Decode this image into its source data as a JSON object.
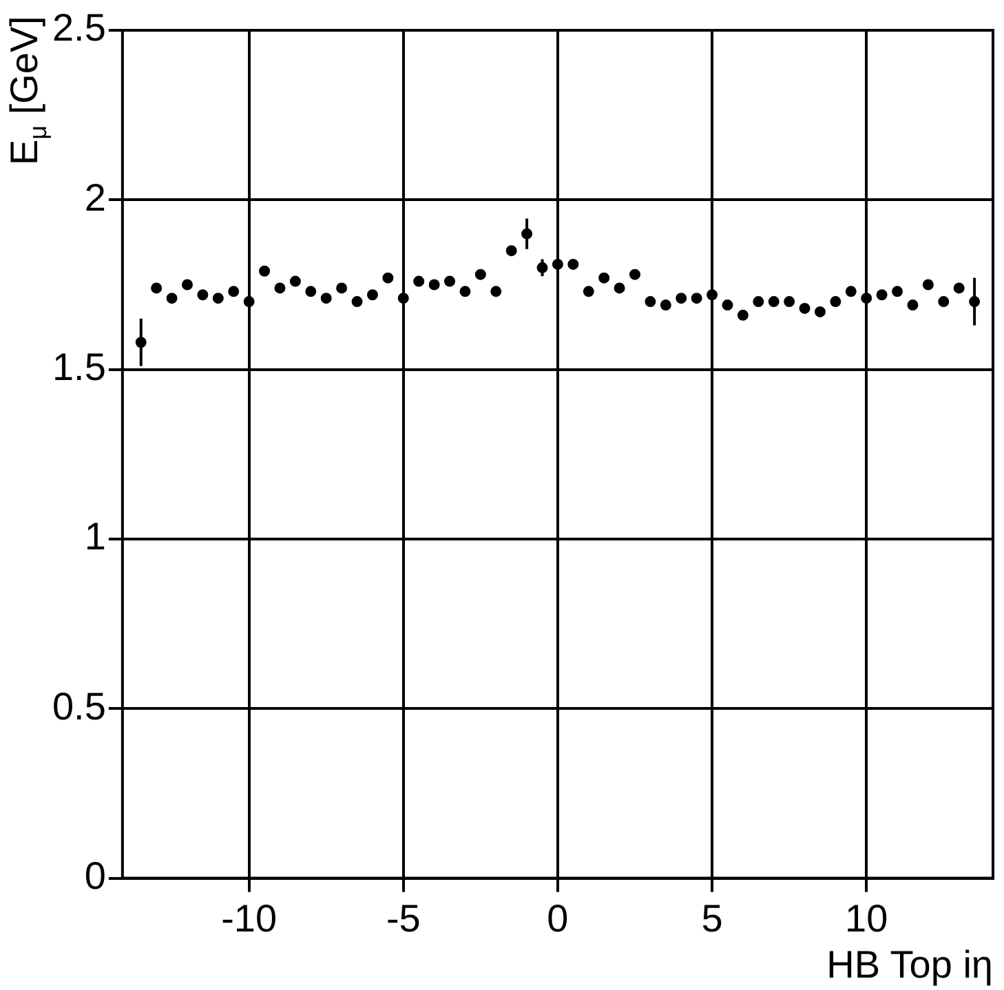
{
  "chart_data": {
    "type": "scatter",
    "xlabel": "HB Top iη",
    "ylabel": "E$_{μ}$ [GeV]",
    "x": [
      -13.5,
      -13,
      -12.5,
      -12,
      -11.5,
      -11,
      -10.5,
      -10,
      -9.5,
      -9,
      -8.5,
      -8,
      -7.5,
      -7,
      -6.5,
      -6,
      -5.5,
      -5,
      -4.5,
      -4,
      -3.5,
      -3,
      -2.5,
      -2,
      -1.5,
      -1,
      -0.5,
      0,
      0.5,
      1,
      1.5,
      2,
      2.5,
      3,
      3.5,
      4,
      4.5,
      5,
      5.5,
      6,
      6.5,
      7,
      7.5,
      8,
      8.5,
      9,
      9.5,
      10,
      10.5,
      11,
      11.5,
      12,
      12.5,
      13,
      13.5
    ],
    "series": [
      {
        "color": "#000000",
        "values": [
          1.58,
          1.74,
          1.71,
          1.75,
          1.72,
          1.71,
          1.73,
          1.7,
          1.79,
          1.74,
          1.76,
          1.73,
          1.71,
          1.74,
          1.7,
          1.72,
          1.77,
          1.71,
          1.76,
          1.75,
          1.76,
          1.73,
          1.78,
          1.73,
          1.85,
          1.9,
          1.8,
          1.81,
          1.81,
          1.73,
          1.77,
          1.74,
          1.78,
          1.7,
          1.69,
          1.71,
          1.71,
          1.72,
          1.69,
          1.66,
          1.7,
          1.7,
          1.7,
          1.68,
          1.67,
          1.7,
          1.73,
          1.71,
          1.72,
          1.73,
          1.69,
          1.75,
          1.7,
          1.74,
          1.7
        ],
        "errors": [
          0.07,
          null,
          null,
          null,
          null,
          null,
          null,
          null,
          null,
          null,
          null,
          null,
          null,
          null,
          null,
          null,
          null,
          null,
          null,
          null,
          null,
          null,
          null,
          null,
          null,
          0.045,
          0.025,
          null,
          null,
          null,
          null,
          null,
          null,
          null,
          null,
          null,
          null,
          null,
          null,
          null,
          null,
          null,
          null,
          null,
          null,
          null,
          null,
          null,
          null,
          null,
          null,
          null,
          null,
          null,
          0.07
        ]
      }
    ],
    "xlim": [
      -14.1,
      14.1
    ],
    "xticks": [
      -10,
      -5,
      0,
      5,
      10
    ],
    "ylim": [
      0,
      2.5
    ],
    "yticks": [
      0,
      0.5,
      1,
      1.5,
      2,
      2.5
    ],
    "grid": true,
    "marker": "circle",
    "legend": false
  }
}
